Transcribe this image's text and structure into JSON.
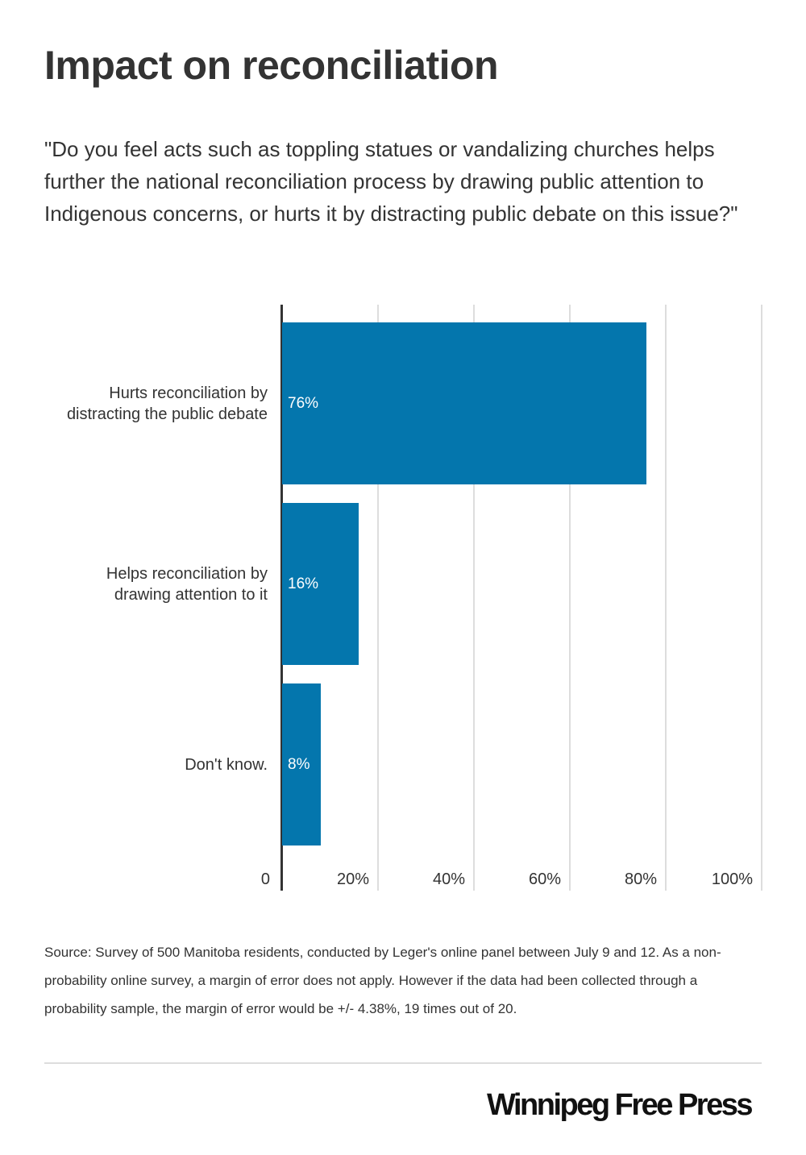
{
  "title": "Impact on reconciliation",
  "question": "\"Do you feel acts such as toppling statues or vandalizing churches helps further the national reconciliation process by drawing public attention to Indigenous concerns, or hurts it by distracting public debate on this issue?\"",
  "chart_data": {
    "type": "bar",
    "orientation": "horizontal",
    "categories": [
      "Hurts reconciliation by distracting the public debate",
      "Helps reconciliation by drawing attention to it",
      "Don't know."
    ],
    "category_lines": [
      [
        "Hurts reconciliation by",
        "distracting the public debate"
      ],
      [
        "Helps reconciliation by",
        "drawing attention to it"
      ],
      [
        "Don't know."
      ]
    ],
    "values": [
      76,
      16,
      8
    ],
    "data_labels": [
      "76%",
      "16%",
      "8%"
    ],
    "xlim": [
      0,
      100
    ],
    "x_ticks": [
      0,
      20,
      40,
      60,
      80,
      100
    ],
    "x_tick_labels": [
      "0",
      "20%",
      "40%",
      "60%",
      "80%",
      "100%"
    ],
    "grid": true,
    "bar_color": "#0476ad"
  },
  "source": "Source: Survey of 500 Manitoba residents, conducted by Leger's online panel between July 9 and 12. As a non-probability online survey, a margin of error does not apply. However if the data had been collected through a probability sample, the margin of error would be +/- 4.38%, 19 times out of 20.",
  "logo": "Winnipeg Free Press"
}
